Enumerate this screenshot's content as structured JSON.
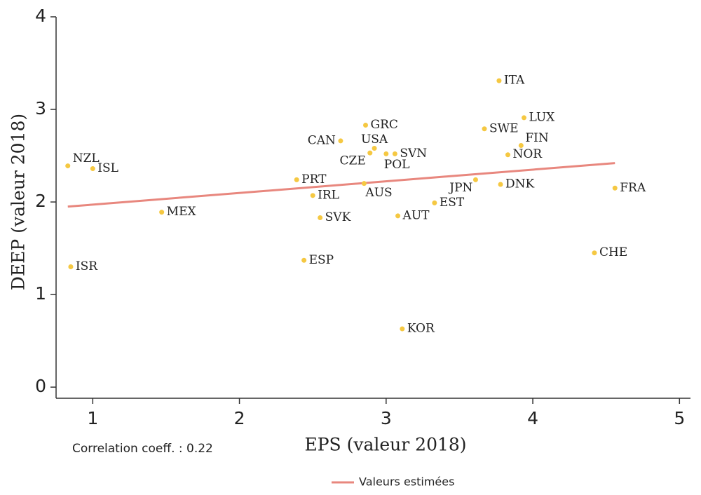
{
  "chart_data": {
    "type": "scatter",
    "xlabel": "EPS (valeur 2018)",
    "ylabel": "DEEP (valeur 2018)",
    "annotation": "Correlation coeff. : 0.22",
    "xlim": [
      0.75,
      5.075
    ],
    "ylim": [
      -0.12,
      4.0
    ],
    "xticks": [
      1,
      2,
      3,
      4,
      5
    ],
    "yticks": [
      0,
      1,
      2,
      3,
      4
    ],
    "points": {
      "color": "#f5c842",
      "labels": [
        "NZL",
        "ISL",
        "ISR",
        "MEX",
        "PRT",
        "IRL",
        "SVK",
        "ESP",
        "CAN",
        "GRC",
        "USA",
        "CZE",
        "SVN",
        "POL",
        "AUS",
        "AUT",
        "KOR",
        "EST",
        "JPN",
        "DNK",
        "ITA",
        "SWE",
        "LUX",
        "FIN",
        "NOR",
        "FRA",
        "CHE"
      ],
      "x": [
        0.83,
        1.0,
        0.85,
        1.47,
        2.39,
        2.5,
        2.55,
        2.44,
        2.69,
        2.86,
        2.92,
        2.89,
        3.06,
        3.0,
        2.85,
        3.08,
        3.11,
        3.33,
        3.61,
        3.78,
        3.77,
        3.67,
        3.94,
        3.92,
        3.83,
        4.56,
        4.42
      ],
      "y": [
        2.39,
        2.36,
        1.3,
        1.89,
        2.24,
        2.07,
        1.83,
        1.37,
        2.66,
        2.83,
        2.58,
        2.53,
        2.52,
        2.52,
        2.2,
        1.85,
        0.63,
        1.99,
        2.24,
        2.19,
        3.31,
        2.79,
        2.91,
        2.61,
        2.51,
        2.15,
        1.45
      ]
    },
    "fit_line": {
      "name": "Valeurs estimées",
      "color": "#e8877e",
      "x": [
        0.83,
        4.56
      ],
      "values": [
        1.95,
        2.42
      ]
    }
  }
}
